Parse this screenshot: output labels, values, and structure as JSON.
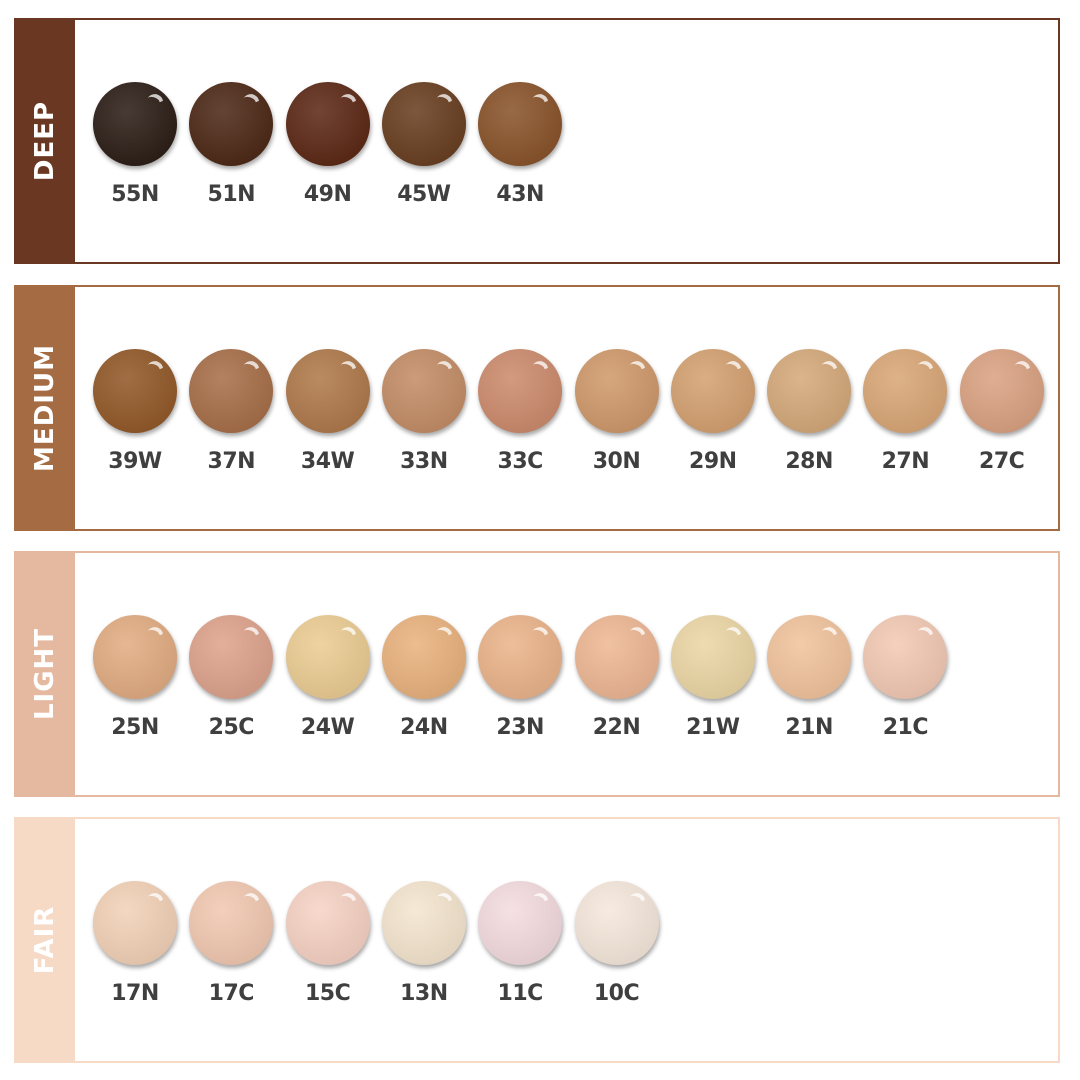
{
  "sections": [
    {
      "name": "DEEP",
      "color": "#6a3822",
      "shades": [
        {
          "code": "55N",
          "color": "#2e1f18"
        },
        {
          "code": "51N",
          "color": "#4e2a18"
        },
        {
          "code": "49N",
          "color": "#5e2a17"
        },
        {
          "code": "45W",
          "color": "#6a4022"
        },
        {
          "code": "43N",
          "color": "#8a552c"
        }
      ]
    },
    {
      "name": "MEDIUM",
      "color": "#a56b43",
      "shades": [
        {
          "code": "39W",
          "color": "#935a2a"
        },
        {
          "code": "37N",
          "color": "#a8704a"
        },
        {
          "code": "34W",
          "color": "#b07a4c"
        },
        {
          "code": "33N",
          "color": "#c48e68"
        },
        {
          "code": "33C",
          "color": "#cd8c6e"
        },
        {
          "code": "30N",
          "color": "#d09a6c"
        },
        {
          "code": "29N",
          "color": "#d5a272"
        },
        {
          "code": "28N",
          "color": "#d6aa7c"
        },
        {
          "code": "27N",
          "color": "#daa878"
        },
        {
          "code": "27C",
          "color": "#dba383"
        }
      ]
    },
    {
      "name": "LIGHT",
      "color": "#e5b9a0",
      "shades": [
        {
          "code": "25N",
          "color": "#e2ad83"
        },
        {
          "code": "25C",
          "color": "#dea48d"
        },
        {
          "code": "24W",
          "color": "#eccd94"
        },
        {
          "code": "24N",
          "color": "#eab37f"
        },
        {
          "code": "23N",
          "color": "#ebb58c"
        },
        {
          "code": "22N",
          "color": "#eeb895"
        },
        {
          "code": "21W",
          "color": "#ecd7a6"
        },
        {
          "code": "21N",
          "color": "#f2c49e"
        },
        {
          "code": "21C",
          "color": "#f3cab5"
        }
      ]
    },
    {
      "name": "FAIR",
      "color": "#f7dac6",
      "shades": [
        {
          "code": "17N",
          "color": "#f3d2b8"
        },
        {
          "code": "17C",
          "color": "#f2c9b2"
        },
        {
          "code": "15C",
          "color": "#f7d3c5"
        },
        {
          "code": "13N",
          "color": "#f5e6cf"
        },
        {
          "code": "11C",
          "color": "#f4dcdf"
        },
        {
          "code": "10C",
          "color": "#f6e8dc"
        }
      ]
    }
  ]
}
